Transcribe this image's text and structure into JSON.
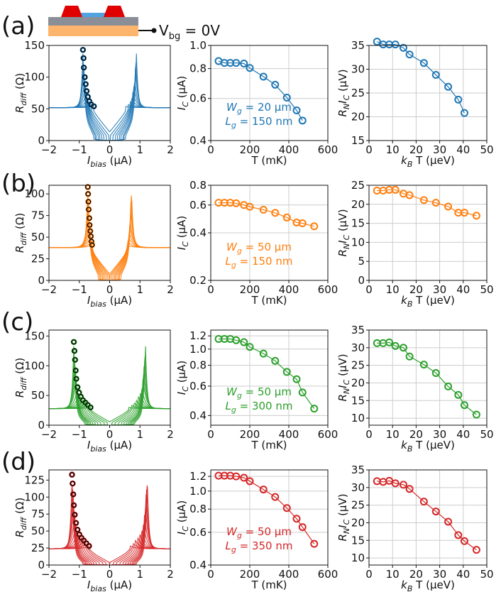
{
  "figure": {
    "gate_label": "V",
    "gate_sub": "bg",
    "gate_value": " = 0V",
    "colors": {
      "a": "#1f77b4",
      "b": "#ff7f0e",
      "c": "#2ca02c",
      "d": "#d62728",
      "marker_edge": "#000000",
      "grid": "#cccccc"
    }
  },
  "chart_data": [
    {
      "panel": "(a)",
      "color": "#1f77b4",
      "legend_w": "W",
      "legend_w_sub": "g",
      "legend_w_val": " = 20 μm",
      "legend_l": "L",
      "legend_l_sub": "g",
      "legend_l_val": " = 150 nm",
      "rdiff": {
        "type": "line",
        "xlabel_main": "I",
        "xlabel_sub": "bias",
        "xlabel_unit": " (μA)",
        "ylabel_main": "R",
        "ylabel_sub": "diff",
        "ylabel_unit": " (Ω)",
        "xlim": [
          -2,
          2
        ],
        "ylim": [
          0,
          150
        ],
        "xticks": [
          -2,
          -1,
          0,
          1,
          2
        ],
        "yticks": [
          0,
          50,
          100,
          150
        ],
        "n_curves": 10,
        "baseline": 52,
        "switch_points": [
          {
            "x": -0.88,
            "y": 143
          },
          {
            "x": -0.86,
            "y": 130
          },
          {
            "x": -0.85,
            "y": 115
          },
          {
            "x": -0.82,
            "y": 100
          },
          {
            "x": -0.79,
            "y": 89
          },
          {
            "x": -0.76,
            "y": 78
          },
          {
            "x": -0.72,
            "y": 69
          },
          {
            "x": -0.67,
            "y": 62
          },
          {
            "x": -0.61,
            "y": 57
          },
          {
            "x": -0.52,
            "y": 54
          }
        ]
      },
      "ic": {
        "type": "line",
        "xlabel": "T (mK)",
        "ylabel_main": "I",
        "ylabel_sub": "C",
        "ylabel_unit": " (μA)",
        "log_y": true,
        "xlim": [
          0,
          600
        ],
        "ylim": [
          0.4,
          1.0
        ],
        "xticks": [
          0,
          200,
          400,
          600
        ],
        "yticks": [
          0.4,
          0.6,
          0.8,
          1.0
        ],
        "ytick_labels": [
          "0.4",
          "0.6",
          "0.8",
          "1.0"
        ],
        "x": [
          40,
          70,
          100,
          130,
          170,
          200,
          270,
          330,
          390,
          440,
          470
        ],
        "y": [
          0.86,
          0.845,
          0.845,
          0.845,
          0.84,
          0.805,
          0.74,
          0.685,
          0.605,
          0.535,
          0.485
        ]
      },
      "rnic": {
        "type": "line",
        "xlabel_main": "k",
        "xlabel_sub": "B",
        "xlabel_unit": " T (μeV)",
        "ylabel": "RₙIᴄ (μV)",
        "ylabel_main": "R",
        "ylabel_sub1": "N",
        "ylabel_mid": "I",
        "ylabel_sub2": "C",
        "ylabel_unit": " (μV)",
        "xlim": [
          0,
          50
        ],
        "ylim": [
          15,
          35
        ],
        "xticks": [
          0,
          10,
          20,
          30,
          40,
          50
        ],
        "yticks": [
          15,
          20,
          25,
          30,
          35
        ],
        "x": [
          3.4,
          6,
          8.6,
          11.2,
          14.6,
          17.2,
          23.3,
          28.4,
          33.6,
          37.9,
          40.5
        ],
        "y": [
          35.8,
          35.2,
          35.2,
          35.2,
          34.5,
          33.1,
          31.3,
          28.8,
          26.3,
          23.6,
          20.8
        ]
      }
    },
    {
      "panel": "(b)",
      "color": "#ff7f0e",
      "legend_w": "W",
      "legend_w_sub": "g",
      "legend_w_val": " = 50 μm",
      "legend_l": "L",
      "legend_l_sub": "g",
      "legend_l_val": " = 150 nm",
      "rdiff": {
        "type": "line",
        "xlabel_main": "I",
        "xlabel_sub": "bias",
        "xlabel_unit": " (μA)",
        "ylabel_main": "R",
        "ylabel_sub": "diff",
        "ylabel_unit": " (Ω)",
        "xlim": [
          -2,
          2
        ],
        "ylim": [
          0,
          110
        ],
        "xticks": [
          -2,
          -1,
          0,
          1,
          2
        ],
        "yticks": [
          0,
          25,
          50,
          75,
          100
        ],
        "n_curves": 10,
        "baseline": 38,
        "switch_points": [
          {
            "x": -0.72,
            "y": 108
          },
          {
            "x": -0.71,
            "y": 100
          },
          {
            "x": -0.7,
            "y": 91
          },
          {
            "x": -0.69,
            "y": 82
          },
          {
            "x": -0.67,
            "y": 72
          },
          {
            "x": -0.66,
            "y": 64
          },
          {
            "x": -0.64,
            "y": 57
          },
          {
            "x": -0.62,
            "y": 51
          },
          {
            "x": -0.6,
            "y": 45
          },
          {
            "x": -0.58,
            "y": 41
          }
        ]
      },
      "ic": {
        "type": "line",
        "xlabel": "T (mK)",
        "ylabel_main": "I",
        "ylabel_sub": "C",
        "ylabel_unit": " (μA)",
        "log_y": true,
        "xlim": [
          0,
          600
        ],
        "ylim": [
          0.2,
          0.8
        ],
        "xticks": [
          0,
          200,
          400,
          600
        ],
        "yticks": [
          0.2,
          0.4,
          0.6,
          0.8
        ],
        "ytick_labels": [
          "0.2",
          "0.4",
          "0.6",
          "0.8"
        ],
        "x": [
          40,
          70,
          100,
          130,
          170,
          200,
          270,
          330,
          390,
          440,
          470,
          530
        ],
        "y": [
          0.62,
          0.62,
          0.62,
          0.615,
          0.6,
          0.585,
          0.56,
          0.535,
          0.5,
          0.465,
          0.46,
          0.44
        ]
      },
      "rnic": {
        "type": "line",
        "xlabel_main": "k",
        "xlabel_sub": "B",
        "xlabel_unit": " T (μeV)",
        "ylabel_main": "R",
        "ylabel_sub1": "N",
        "ylabel_mid": "I",
        "ylabel_sub2": "C",
        "ylabel_unit": " (μV)",
        "xlim": [
          0,
          50
        ],
        "ylim": [
          0,
          25
        ],
        "xticks": [
          0,
          10,
          20,
          30,
          40,
          50
        ],
        "yticks": [
          0,
          5,
          10,
          15,
          20,
          25
        ],
        "x": [
          3.4,
          6,
          8.6,
          11.2,
          14.6,
          17.2,
          23.3,
          28.4,
          33.6,
          37.9,
          40.5,
          45.6
        ],
        "y": [
          23.6,
          23.6,
          23.8,
          23.8,
          22.8,
          22.4,
          21.1,
          20.4,
          19.4,
          17.8,
          17.8,
          17.0
        ]
      }
    },
    {
      "panel": "(c)",
      "color": "#2ca02c",
      "legend_w": "W",
      "legend_w_sub": "g",
      "legend_w_val": " = 50 μm",
      "legend_l": "L",
      "legend_l_sub": "g",
      "legend_l_val": " = 300 nm",
      "rdiff": {
        "type": "line",
        "xlabel_main": "I",
        "xlabel_sub": "bias",
        "xlabel_unit": " (μA)",
        "ylabel_main": "R",
        "ylabel_sub": "diff",
        "ylabel_unit": " (Ω)",
        "xlim": [
          -2,
          2
        ],
        "ylim": [
          0,
          160
        ],
        "xticks": [
          -2,
          -1,
          0,
          1,
          2
        ],
        "yticks": [
          0,
          50,
          100,
          150
        ],
        "n_curves": 12,
        "baseline": 28,
        "switch_points": [
          {
            "x": -1.18,
            "y": 140
          },
          {
            "x": -1.16,
            "y": 125
          },
          {
            "x": -1.14,
            "y": 110
          },
          {
            "x": -1.12,
            "y": 92
          },
          {
            "x": -1.1,
            "y": 78
          },
          {
            "x": -1.06,
            "y": 64
          },
          {
            "x": -1.01,
            "y": 55
          },
          {
            "x": -0.95,
            "y": 48
          },
          {
            "x": -0.88,
            "y": 42
          },
          {
            "x": -0.8,
            "y": 38
          },
          {
            "x": -0.72,
            "y": 34
          },
          {
            "x": -0.63,
            "y": 30
          }
        ]
      },
      "ic": {
        "type": "line",
        "xlabel": "T (mK)",
        "ylabel_main": "I",
        "ylabel_sub": "C",
        "ylabel_unit": " (μA)",
        "log_y": true,
        "xlim": [
          0,
          600
        ],
        "ylim": [
          0.35,
          1.3
        ],
        "xticks": [
          0,
          200,
          400,
          600
        ],
        "yticks": [
          0.4,
          0.6,
          0.8,
          1.0,
          1.2
        ],
        "ytick_labels": [
          "0.4",
          "0.6",
          "0.8",
          "1.0",
          "1.2"
        ],
        "x": [
          40,
          70,
          100,
          130,
          170,
          200,
          270,
          330,
          390,
          440,
          470,
          530
        ],
        "y": [
          1.15,
          1.15,
          1.15,
          1.13,
          1.1,
          1.03,
          0.94,
          0.85,
          0.73,
          0.66,
          0.55,
          0.44
        ]
      },
      "rnic": {
        "type": "line",
        "xlabel_main": "k",
        "xlabel_sub": "B",
        "xlabel_unit": " T (μeV)",
        "ylabel_main": "R",
        "ylabel_sub1": "N",
        "ylabel_mid": "I",
        "ylabel_sub2": "C",
        "ylabel_unit": " (μV)",
        "xlim": [
          0,
          50
        ],
        "ylim": [
          8,
          35
        ],
        "xticks": [
          0,
          10,
          20,
          30,
          40,
          50
        ],
        "yticks": [
          10,
          15,
          20,
          25,
          30,
          35
        ],
        "x": [
          3.4,
          6,
          8.6,
          11.2,
          14.6,
          17.2,
          23.3,
          28.4,
          33.6,
          37.9,
          40.5,
          45.6
        ],
        "y": [
          31.3,
          31.3,
          31.5,
          30.5,
          30.0,
          27.5,
          25.2,
          22.8,
          19.0,
          16.6,
          13.7,
          11.0
        ]
      }
    },
    {
      "panel": "(d)",
      "color": "#d62728",
      "legend_w": "W",
      "legend_w_sub": "g",
      "legend_w_val": " = 50 μm",
      "legend_l": "L",
      "legend_l_sub": "g",
      "legend_l_val": " = 350 nm",
      "rdiff": {
        "type": "line",
        "xlabel_main": "I",
        "xlabel_sub": "bias",
        "xlabel_unit": " (μA)",
        "ylabel_main": "R",
        "ylabel_sub": "diff",
        "ylabel_unit": " (Ω)",
        "xlim": [
          -2,
          2
        ],
        "ylim": [
          0,
          140
        ],
        "xticks": [
          -2,
          -1,
          0,
          1,
          2
        ],
        "yticks": [
          0,
          25,
          50,
          75,
          100,
          125
        ],
        "n_curves": 12,
        "baseline": 24,
        "switch_points": [
          {
            "x": -1.24,
            "y": 133
          },
          {
            "x": -1.22,
            "y": 120
          },
          {
            "x": -1.2,
            "y": 104
          },
          {
            "x": -1.18,
            "y": 88
          },
          {
            "x": -1.15,
            "y": 74
          },
          {
            "x": -1.11,
            "y": 62
          },
          {
            "x": -1.06,
            "y": 52
          },
          {
            "x": -1.0,
            "y": 45
          },
          {
            "x": -0.93,
            "y": 40
          },
          {
            "x": -0.85,
            "y": 36
          },
          {
            "x": -0.77,
            "y": 32
          },
          {
            "x": -0.68,
            "y": 28
          }
        ]
      },
      "ic": {
        "type": "line",
        "xlabel": "T (mK)",
        "ylabel_main": "I",
        "ylabel_sub": "C",
        "ylabel_unit": " (μA)",
        "log_y": true,
        "xlim": [
          0,
          600
        ],
        "ylim": [
          0.4,
          1.3
        ],
        "xticks": [
          0,
          200,
          400,
          600
        ],
        "yticks": [
          0.4,
          0.6,
          0.8,
          1.0,
          1.2
        ],
        "ytick_labels": [
          "0.4",
          "0.6",
          "0.8",
          "1.0",
          "1.2"
        ],
        "x": [
          40,
          70,
          100,
          130,
          170,
          200,
          270,
          330,
          390,
          440,
          470,
          530
        ],
        "y": [
          1.21,
          1.21,
          1.21,
          1.2,
          1.18,
          1.13,
          1.02,
          0.93,
          0.81,
          0.71,
          0.64,
          0.52
        ]
      },
      "rnic": {
        "type": "line",
        "xlabel_main": "k",
        "xlabel_sub": "B",
        "xlabel_unit": " T (μeV)",
        "ylabel_main": "R",
        "ylabel_sub1": "N",
        "ylabel_mid": "I",
        "ylabel_sub2": "C",
        "ylabel_unit": " (μV)",
        "xlim": [
          0,
          50
        ],
        "ylim": [
          8,
          35
        ],
        "xticks": [
          0,
          10,
          20,
          30,
          40,
          50
        ],
        "yticks": [
          10,
          15,
          20,
          25,
          30,
          35
        ],
        "x": [
          3.4,
          6,
          8.6,
          11.2,
          14.6,
          17.2,
          23.3,
          28.4,
          33.6,
          37.9,
          40.5,
          45.6
        ],
        "y": [
          31.8,
          31.6,
          31.9,
          31.2,
          30.8,
          29.6,
          26.0,
          23.2,
          20.3,
          16.5,
          14.8,
          12.3
        ]
      }
    }
  ]
}
